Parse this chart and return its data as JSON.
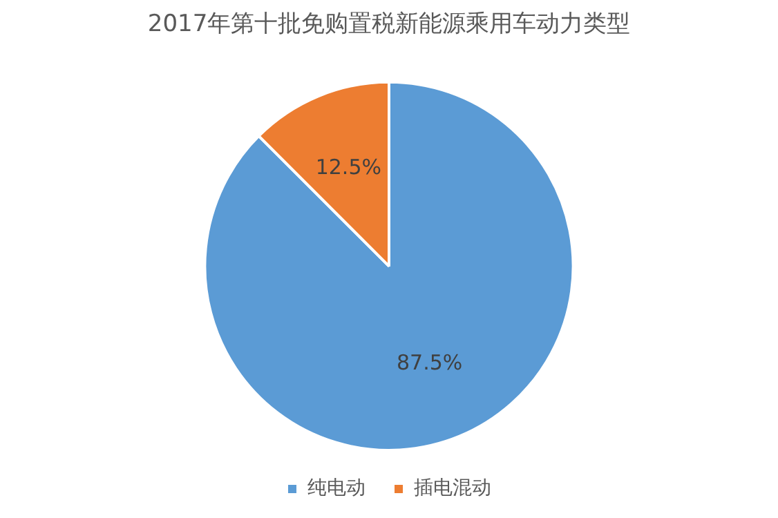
{
  "chart_data": {
    "type": "pie",
    "title": "2017年第十批免购置税新能源乘用车动力类型",
    "categories": [
      "纯电动",
      "插电混动"
    ],
    "values": [
      87.5,
      12.5
    ],
    "colors": [
      "#5b9bd5",
      "#ed7d31"
    ],
    "value_labels": [
      "87.5%",
      "12.5%"
    ],
    "legend": "bottom"
  }
}
